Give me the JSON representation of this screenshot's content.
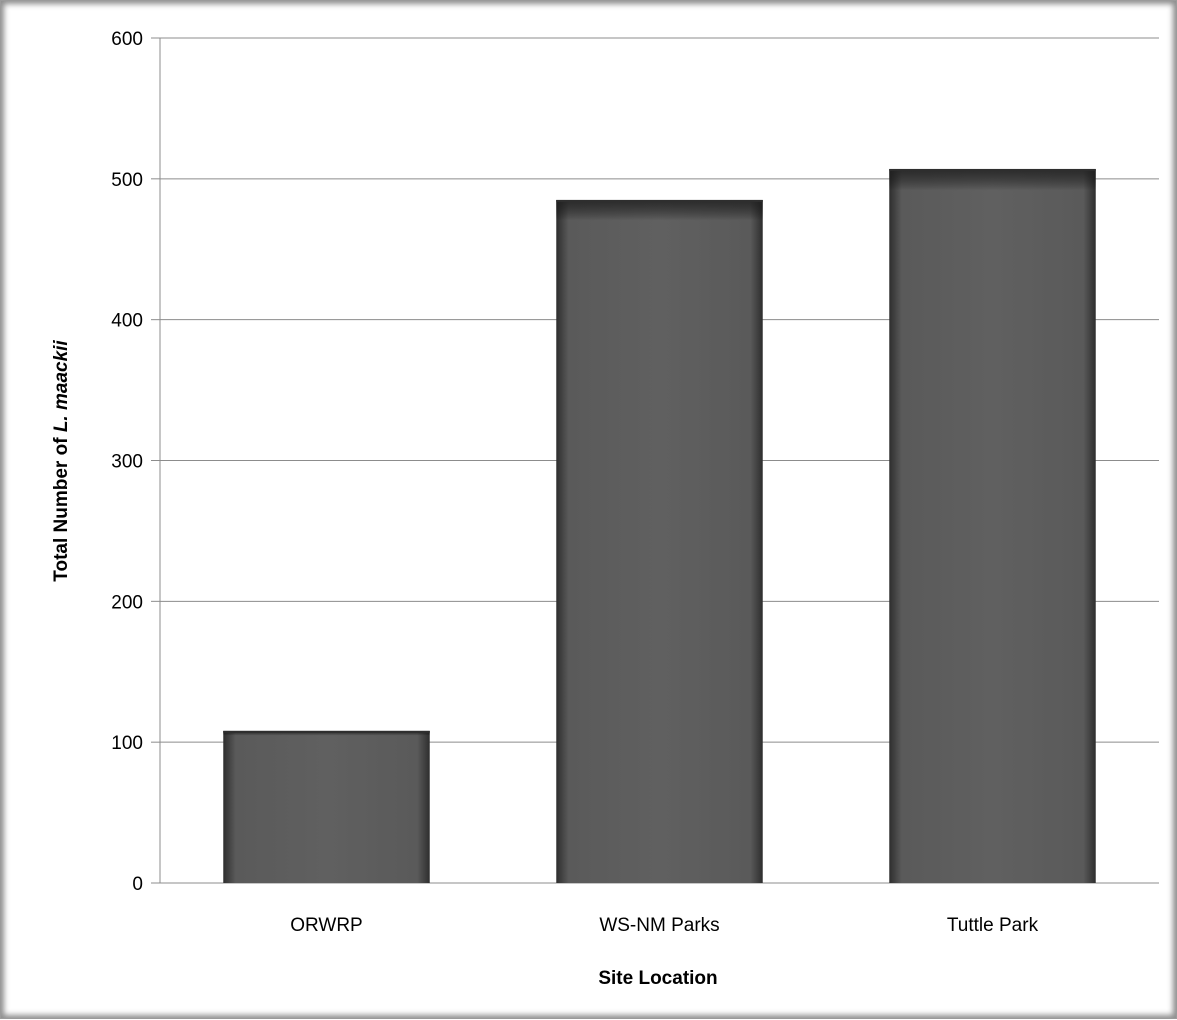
{
  "chart_data": {
    "type": "bar",
    "categories": [
      "ORWRP",
      "WS-NM Parks",
      "Tuttle Park"
    ],
    "values": [
      108,
      485,
      507
    ],
    "title": "",
    "xlabel": "Site Location",
    "ylabel_prefix": "Total Number of ",
    "ylabel_species": "L. maackii",
    "ylim": [
      0,
      600
    ],
    "yticks": [
      "0",
      "100",
      "200",
      "300",
      "400",
      "500",
      "600"
    ],
    "grid": true,
    "bar_color": "#5e5e5e",
    "bar_edge_color": "#2e2e2e",
    "gridline_color": "#8c8c8c"
  }
}
